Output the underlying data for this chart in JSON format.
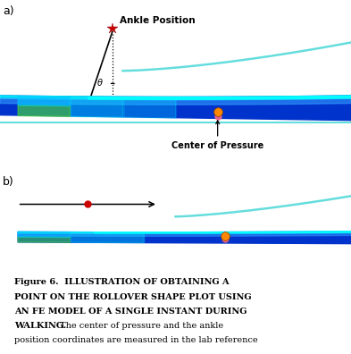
{
  "figure_label_a": "a)",
  "figure_label_b": "b)",
  "annotation_ankle": "Ankle Position",
  "annotation_cop": "Center of Pressure",
  "annotation_theta": "θ",
  "background_color": "#ffffff",
  "fig_width": 3.93,
  "fig_height": 3.96,
  "sole_blue_dark": "#0033cc",
  "sole_blue_light": "#3399ff",
  "sole_cyan_bright": "#00ffff",
  "sole_cyan_mid": "#00dddd",
  "ground_cyan": "#66dddd",
  "green_yellow": "#88ff44",
  "star_color": "#cc0000",
  "cop_orange": "#ff8800",
  "cop_pink": "#ff6688",
  "text_color": "#000000",
  "caption_line1": "Figure 6.  ILLUSTRATION OF OBTAINING A",
  "caption_line2": "POINT ON THE ROLLOVER SHAPE PLOT USING",
  "caption_line3": "AN FE MODEL OF A SINGLE INSTANT DURING",
  "caption_line4": "WALKING.  The center of pressure and the ankle",
  "caption_line5": "position coordinates are measured in the lab reference"
}
